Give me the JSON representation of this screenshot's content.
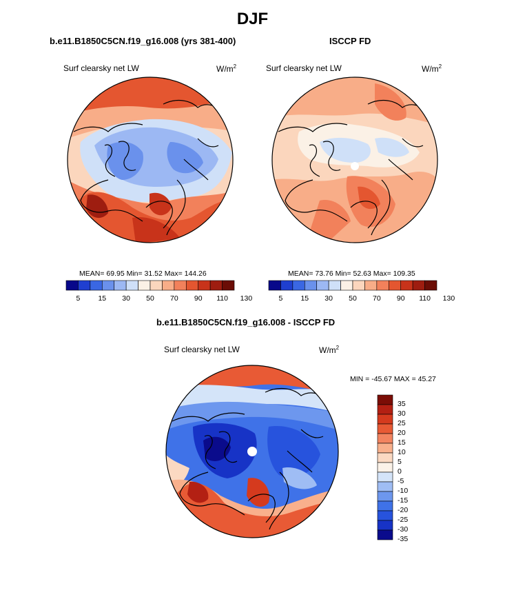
{
  "title": "DJF",
  "colors": {
    "scale13": [
      "#08088a",
      "#1f3fd0",
      "#3a67e3",
      "#6a91ec",
      "#9cb8f3",
      "#cfe0f8",
      "#fbf1e6",
      "#fbd6bd",
      "#f8ad88",
      "#f2815b",
      "#e45630",
      "#c8331a",
      "#9e1d10",
      "#6b0d06"
    ],
    "scale_diff": [
      "#0a0b8c",
      "#1733c6",
      "#2753dd",
      "#3f72e8",
      "#6d97ee",
      "#9fbdf4",
      "#d4e4f9",
      "#fbf2e8",
      "#fbd9c2",
      "#f9b08c",
      "#f38460",
      "#e85a35",
      "#d53a1e",
      "#b32013",
      "#7b0d06"
    ]
  },
  "panels": [
    {
      "id": "model",
      "title": "b.e11.B1850C5CN.f19_g16.008 (yrs 381-400)",
      "variable": "Surf clearsky net LW",
      "units": "W/m",
      "units_sup": "2",
      "stats": "MEAN=  69.95  Min=  31.52  Max=  144.26",
      "colorbar_labels": [
        "5",
        "15",
        "30",
        "50",
        "70",
        "90",
        "110",
        "130"
      ]
    },
    {
      "id": "obs",
      "title": "ISCCP FD",
      "variable": "Surf clearsky net LW",
      "units": "W/m",
      "units_sup": "2",
      "stats": "MEAN=  73.76  Min=  52.63  Max=  109.35",
      "colorbar_labels": [
        "5",
        "15",
        "30",
        "50",
        "70",
        "90",
        "110",
        "130"
      ]
    },
    {
      "id": "diff",
      "title": "b.e11.B1850C5CN.f19_g16.008 - ISCCP FD",
      "variable": "Surf clearsky net LW",
      "units": "W/m",
      "units_sup": "2",
      "stats": "MIN = -45.67 MAX =  45.27",
      "colorbar_labels": [
        "35",
        "30",
        "25",
        "20",
        "15",
        "10",
        "5",
        "0",
        "-5",
        "-10",
        "-15",
        "-20",
        "-25",
        "-30",
        "-35"
      ]
    }
  ],
  "chart_data": [
    {
      "type": "heatmap",
      "title": "b.e11.B1850C5CN.f19_g16.008 (yrs 381-400)",
      "subtitle": "Surf clearsky net LW",
      "units": "W/m2",
      "mean": 69.95,
      "min": 31.52,
      "max": 144.26,
      "contour_levels": [
        5,
        10,
        15,
        20,
        30,
        40,
        50,
        60,
        70,
        80,
        90,
        100,
        110,
        120,
        130
      ]
    },
    {
      "type": "heatmap",
      "title": "ISCCP FD",
      "subtitle": "Surf clearsky net LW",
      "units": "W/m2",
      "mean": 73.76,
      "min": 52.63,
      "max": 109.35,
      "contour_levels": [
        5,
        10,
        15,
        20,
        30,
        40,
        50,
        60,
        70,
        80,
        90,
        100,
        110,
        120,
        130
      ]
    },
    {
      "type": "heatmap",
      "title": "b.e11.B1850C5CN.f19_g16.008 - ISCCP FD",
      "subtitle": "Surf clearsky net LW",
      "units": "W/m2",
      "min": -45.67,
      "max": 45.27,
      "contour_levels": [
        -35,
        -30,
        -25,
        -20,
        -15,
        -10,
        -5,
        0,
        5,
        10,
        15,
        20,
        25,
        30,
        35
      ]
    }
  ]
}
